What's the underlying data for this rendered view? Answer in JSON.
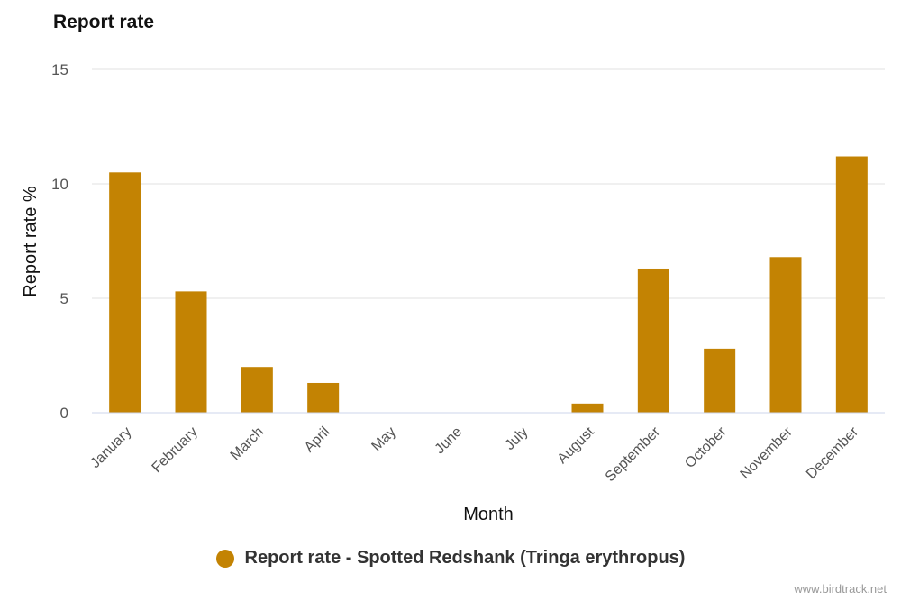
{
  "chart_data": {
    "type": "bar",
    "title": "Report rate",
    "xlabel": "Month",
    "ylabel": "Report rate %",
    "ylim": [
      0,
      15
    ],
    "yticks": [
      0,
      5,
      10,
      15
    ],
    "grid": true,
    "legend_placement": "bottom-center",
    "bar_color": "#c38303",
    "categories": [
      "January",
      "February",
      "March",
      "April",
      "May",
      "June",
      "July",
      "August",
      "September",
      "October",
      "November",
      "December"
    ],
    "series": [
      {
        "name": "Report rate - Spotted Redshank (Tringa erythropus)",
        "values": [
          10.5,
          5.3,
          2.0,
          1.3,
          0,
          0,
          0,
          0.4,
          6.3,
          2.8,
          6.8,
          11.2
        ]
      }
    ]
  },
  "credit": "www.birdtrack.net"
}
